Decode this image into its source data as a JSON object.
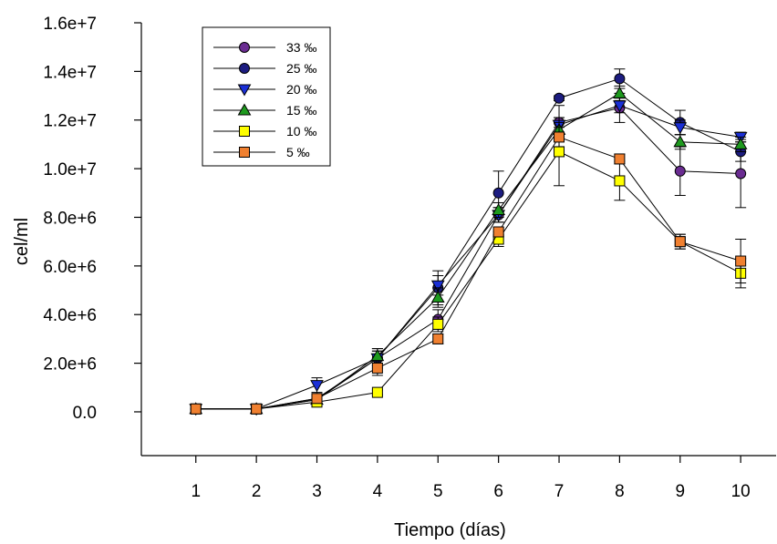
{
  "chart_data": {
    "type": "line",
    "title": "",
    "xlabel": "Tiempo (días)",
    "ylabel": "cel/ml",
    "x": [
      1,
      2,
      3,
      4,
      5,
      6,
      7,
      8,
      9,
      10
    ],
    "x_ticks": [
      "1",
      "2",
      "3",
      "4",
      "5",
      "6",
      "7",
      "8",
      "9",
      "10"
    ],
    "xlim": [
      0.1,
      10.6
    ],
    "ylim": [
      -1800000,
      16000000
    ],
    "y_ticks": [
      0,
      2000000,
      4000000,
      6000000,
      8000000,
      10000000,
      12000000,
      14000000,
      16000000
    ],
    "y_tick_labels": [
      "0.0",
      "2.0e+6",
      "4.0e+6",
      "6.0e+6",
      "8.0e+6",
      "1.0e+7",
      "1.2e+7",
      "1.4e+7",
      "1.6e+7"
    ],
    "grid": false,
    "legend_position": "top-left",
    "series": [
      {
        "name": "33 ‰",
        "marker": "circle",
        "color": "#6a2c91",
        "values": [
          120000,
          120000,
          500000,
          2200000,
          3800000,
          8100000,
          11900000,
          12500000,
          9900000,
          9800000
        ],
        "errors": [
          0,
          0,
          100000,
          400000,
          400000,
          300000,
          700000,
          600000,
          1000000,
          1400000
        ]
      },
      {
        "name": "25 ‰",
        "marker": "circle",
        "color": "#1c1c80",
        "values": [
          120000,
          120000,
          550000,
          2200000,
          5100000,
          9000000,
          12900000,
          13700000,
          11900000,
          10700000
        ],
        "errors": [
          0,
          0,
          100000,
          300000,
          700000,
          900000,
          100000,
          400000,
          500000,
          400000
        ]
      },
      {
        "name": "20 ‰",
        "marker": "triangle-down",
        "color": "#1a2fd6",
        "values": [
          120000,
          120000,
          1100000,
          2200000,
          5200000,
          8100000,
          11800000,
          12600000,
          11700000,
          11300000
        ],
        "errors": [
          0,
          0,
          300000,
          300000,
          400000,
          300000,
          300000,
          300000,
          300000,
          200000
        ]
      },
      {
        "name": "15 ‰",
        "marker": "triangle-up",
        "color": "#1e9a1e",
        "values": [
          120000,
          120000,
          500000,
          2300000,
          4700000,
          8300000,
          11600000,
          13100000,
          11100000,
          11000000
        ],
        "errors": [
          0,
          0,
          100000,
          300000,
          400000,
          300000,
          300000,
          300000,
          300000,
          300000
        ]
      },
      {
        "name": "10 ‰",
        "marker": "square",
        "color": "#ffff00",
        "values": [
          120000,
          120000,
          400000,
          800000,
          3600000,
          7100000,
          10700000,
          9500000,
          7000000,
          5700000
        ],
        "errors": [
          0,
          0,
          100000,
          100000,
          300000,
          300000,
          1400000,
          800000,
          300000,
          600000
        ]
      },
      {
        "name": "5 ‰",
        "marker": "square",
        "color": "#f08030",
        "values": [
          120000,
          120000,
          550000,
          1800000,
          3000000,
          7400000,
          11300000,
          10400000,
          7000000,
          6200000
        ],
        "errors": [
          0,
          0,
          100000,
          300000,
          200000,
          200000,
          400000,
          200000,
          300000,
          900000
        ]
      }
    ]
  }
}
